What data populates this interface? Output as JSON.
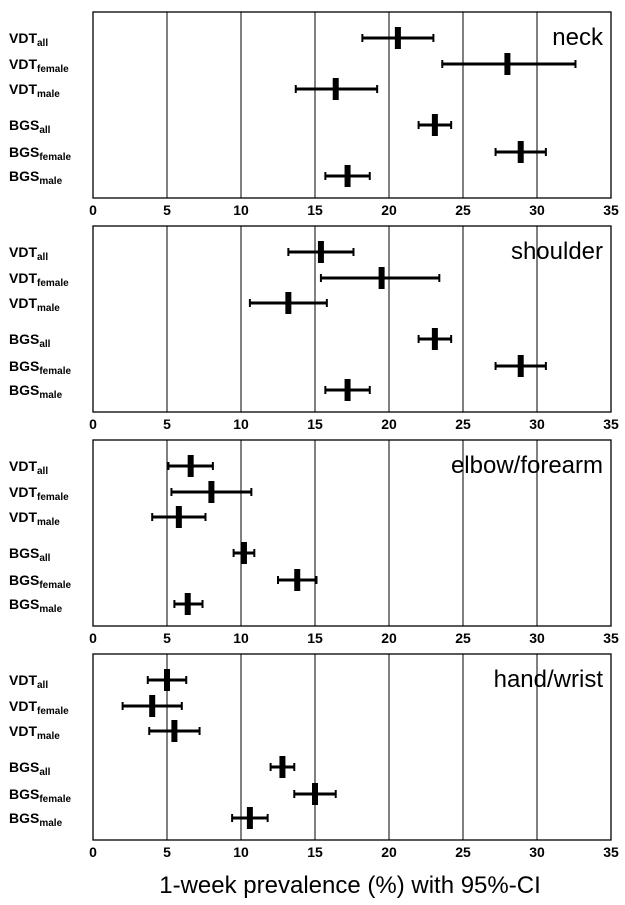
{
  "chart_data": {
    "type": "scatter",
    "xlabel": "1-week prevalence (%) with 95%-CI",
    "xlim": [
      0,
      35
    ],
    "x_ticks": [
      "0",
      "5",
      "10",
      "15",
      "20",
      "25",
      "30",
      "35"
    ],
    "grid": "vertical",
    "row_labels": [
      {
        "main": "VDT",
        "sub": "all"
      },
      {
        "main": "VDT",
        "sub": "female"
      },
      {
        "main": "VDT",
        "sub": "male"
      },
      {
        "main": "BGS",
        "sub": "all"
      },
      {
        "main": "BGS",
        "sub": "female"
      },
      {
        "main": "BGS",
        "sub": "male"
      }
    ],
    "panels": [
      {
        "title": "neck",
        "points": [
          {
            "value": 20.6,
            "low": 18.2,
            "high": 23.0
          },
          {
            "value": 28.0,
            "low": 23.6,
            "high": 32.6
          },
          {
            "value": 16.4,
            "low": 13.7,
            "high": 19.2
          },
          {
            "value": 23.1,
            "low": 22.0,
            "high": 24.2
          },
          {
            "value": 28.9,
            "low": 27.2,
            "high": 30.6
          },
          {
            "value": 17.2,
            "low": 15.7,
            "high": 18.7
          }
        ]
      },
      {
        "title": "shoulder",
        "points": [
          {
            "value": 15.4,
            "low": 13.2,
            "high": 17.6
          },
          {
            "value": 19.5,
            "low": 15.4,
            "high": 23.4
          },
          {
            "value": 13.2,
            "low": 10.6,
            "high": 15.8
          },
          {
            "value": 23.1,
            "low": 22.0,
            "high": 24.2
          },
          {
            "value": 28.9,
            "low": 27.2,
            "high": 30.6
          },
          {
            "value": 17.2,
            "low": 15.7,
            "high": 18.7
          }
        ]
      },
      {
        "title": "elbow/forearm",
        "points": [
          {
            "value": 6.6,
            "low": 5.1,
            "high": 8.1
          },
          {
            "value": 8.0,
            "low": 5.3,
            "high": 10.7
          },
          {
            "value": 5.8,
            "low": 4.0,
            "high": 7.6
          },
          {
            "value": 10.2,
            "low": 9.5,
            "high": 10.9
          },
          {
            "value": 13.8,
            "low": 12.5,
            "high": 15.1
          },
          {
            "value": 6.4,
            "low": 5.5,
            "high": 7.4
          }
        ]
      },
      {
        "title": "hand/wrist",
        "points": [
          {
            "value": 5.0,
            "low": 3.7,
            "high": 6.3
          },
          {
            "value": 4.0,
            "low": 2.0,
            "high": 6.0
          },
          {
            "value": 5.5,
            "low": 3.8,
            "high": 7.2
          },
          {
            "value": 12.8,
            "low": 12.0,
            "high": 13.6
          },
          {
            "value": 15.0,
            "low": 13.6,
            "high": 16.4
          },
          {
            "value": 10.6,
            "low": 9.4,
            "high": 11.8
          }
        ]
      }
    ]
  }
}
